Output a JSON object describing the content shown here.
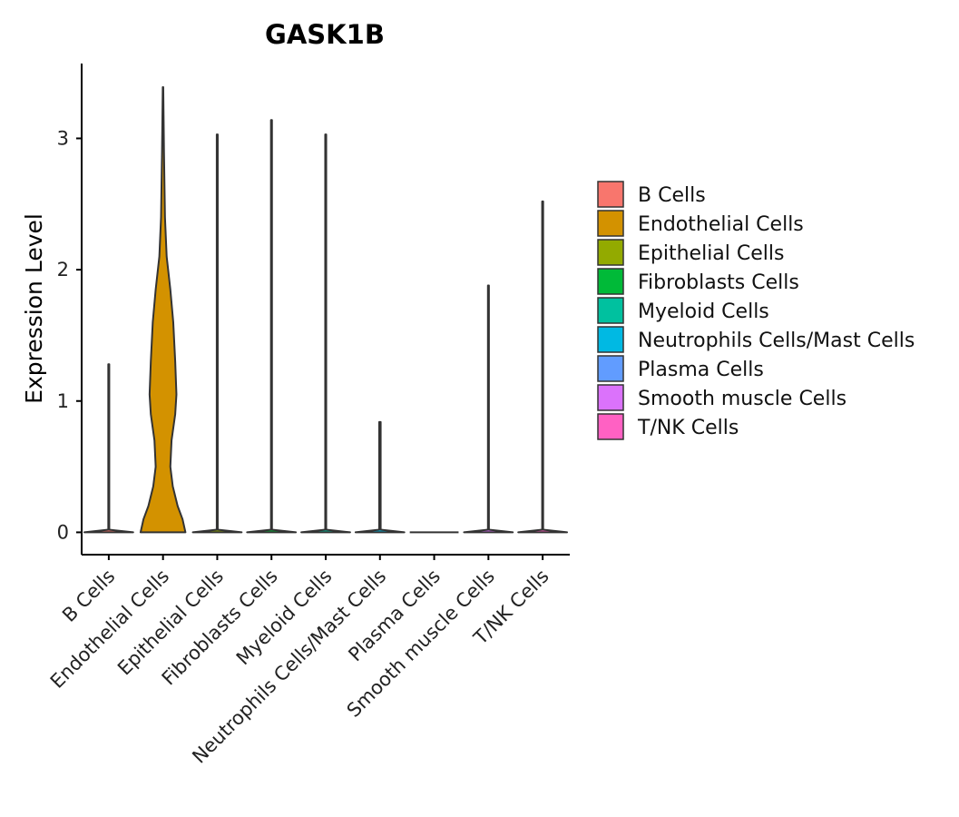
{
  "chart_data": {
    "type": "violin",
    "title": "GASK1B",
    "xlabel": "",
    "ylabel": "Expression Level",
    "ylim": [
      -0.17,
      3.57
    ],
    "yticks": [
      0,
      1,
      2,
      3
    ],
    "grid": false,
    "legend_position": "right",
    "categories": [
      "B Cells",
      "Endothelial Cells",
      "Epithelial Cells",
      "Fibroblasts Cells",
      "Myeloid Cells",
      "Neutrophils Cells/Mast Cells",
      "Plasma Cells",
      "Smooth muscle Cells",
      "T/NK Cells"
    ],
    "colors": [
      "#F8766D",
      "#D39200",
      "#93AA00",
      "#00BA38",
      "#00C19F",
      "#00B9E3",
      "#619CFF",
      "#DB72FB",
      "#FF61C3"
    ],
    "series": [
      {
        "name": "B Cells",
        "max": 1.28,
        "profile": [
          [
            0,
            1.0
          ],
          [
            0.02,
            0.02
          ],
          [
            1.28,
            0.02
          ]
        ]
      },
      {
        "name": "Endothelial Cells",
        "max": 3.39,
        "profile": [
          [
            0,
            0.92
          ],
          [
            0.1,
            0.8
          ],
          [
            0.2,
            0.6
          ],
          [
            0.35,
            0.4
          ],
          [
            0.5,
            0.3
          ],
          [
            0.7,
            0.35
          ],
          [
            0.9,
            0.5
          ],
          [
            1.05,
            0.55
          ],
          [
            1.3,
            0.5
          ],
          [
            1.6,
            0.42
          ],
          [
            1.85,
            0.3
          ],
          [
            2.1,
            0.15
          ],
          [
            2.4,
            0.08
          ],
          [
            2.9,
            0.04
          ],
          [
            3.39,
            0.01
          ]
        ]
      },
      {
        "name": "Epithelial Cells",
        "max": 3.03,
        "profile": [
          [
            0,
            1.0
          ],
          [
            0.02,
            0.02
          ],
          [
            3.03,
            0.02
          ]
        ]
      },
      {
        "name": "Fibroblasts Cells",
        "max": 3.14,
        "profile": [
          [
            0,
            1.0
          ],
          [
            0.02,
            0.02
          ],
          [
            3.14,
            0.02
          ]
        ]
      },
      {
        "name": "Myeloid Cells",
        "max": 3.03,
        "profile": [
          [
            0,
            1.0
          ],
          [
            0.02,
            0.02
          ],
          [
            3.03,
            0.02
          ]
        ]
      },
      {
        "name": "Neutrophils Cells/Mast Cells",
        "max": 0.84,
        "profile": [
          [
            0,
            1.0
          ],
          [
            0.02,
            0.03
          ],
          [
            0.84,
            0.03
          ]
        ]
      },
      {
        "name": "Plasma Cells",
        "max": 0.0,
        "profile": [
          [
            0,
            1.0
          ]
        ]
      },
      {
        "name": "Smooth muscle Cells",
        "max": 1.88,
        "profile": [
          [
            0,
            1.0
          ],
          [
            0.02,
            0.02
          ],
          [
            1.88,
            0.02
          ]
        ]
      },
      {
        "name": "T/NK Cells",
        "max": 2.52,
        "profile": [
          [
            0,
            1.0
          ],
          [
            0.02,
            0.02
          ],
          [
            2.52,
            0.02
          ]
        ]
      }
    ]
  },
  "legend": {
    "items": [
      "B Cells",
      "Endothelial Cells",
      "Epithelial Cells",
      "Fibroblasts Cells",
      "Myeloid Cells",
      "Neutrophils Cells/Mast Cells",
      "Plasma Cells",
      "Smooth muscle Cells",
      "T/NK Cells"
    ]
  }
}
